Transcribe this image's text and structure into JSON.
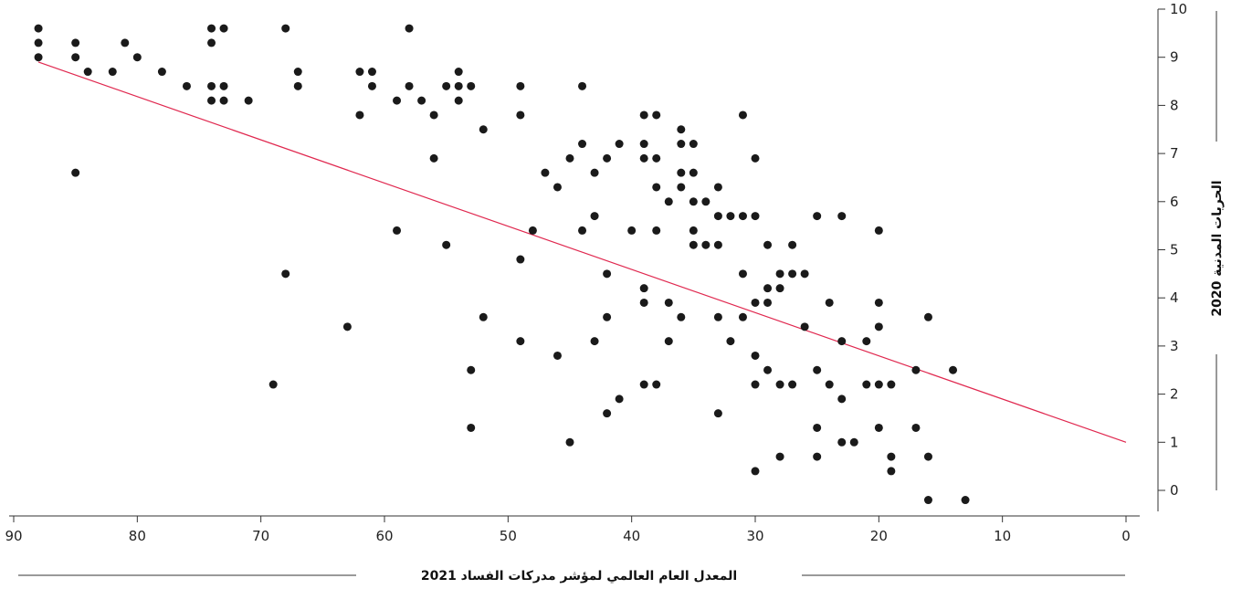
{
  "chart_data": {
    "type": "scatter",
    "title": "",
    "xlabel": "المعدل العام العالمي لمؤشر مدركات الفساد 2021",
    "ylabel": "الحريات المدنية 2020",
    "xlim": [
      90,
      0
    ],
    "ylim": [
      0,
      10
    ],
    "x_ticks": [
      90,
      80,
      70,
      60,
      50,
      40,
      30,
      20,
      10,
      0
    ],
    "y_ticks": [
      0,
      1,
      2,
      3,
      4,
      5,
      6,
      7,
      8,
      9,
      10
    ],
    "grid": false,
    "legend": "none",
    "colors": {
      "points": "#1a1a1a",
      "trendline": "#e0284f",
      "axis": "#333333"
    },
    "trendline": {
      "x": [
        88,
        0
      ],
      "y": [
        8.9,
        1.0
      ]
    },
    "points": [
      [
        88,
        9.6
      ],
      [
        88,
        9.3
      ],
      [
        88,
        9.0
      ],
      [
        85,
        9.3
      ],
      [
        85,
        9.0
      ],
      [
        84,
        8.7
      ],
      [
        82,
        8.7
      ],
      [
        81,
        9.3
      ],
      [
        80,
        9.0
      ],
      [
        78,
        8.7
      ],
      [
        76,
        8.4
      ],
      [
        74,
        9.6
      ],
      [
        74,
        9.3
      ],
      [
        74,
        8.4
      ],
      [
        74,
        8.1
      ],
      [
        73,
        9.6
      ],
      [
        73,
        8.4
      ],
      [
        73,
        8.1
      ],
      [
        71,
        8.1
      ],
      [
        68,
        9.6
      ],
      [
        67,
        8.7
      ],
      [
        67,
        8.4
      ],
      [
        62,
        8.7
      ],
      [
        62,
        7.8
      ],
      [
        61,
        8.7
      ],
      [
        61,
        8.4
      ],
      [
        59,
        8.1
      ],
      [
        58,
        9.6
      ],
      [
        58,
        8.4
      ],
      [
        57,
        8.1
      ],
      [
        56,
        7.8
      ],
      [
        55,
        8.4
      ],
      [
        54,
        8.7
      ],
      [
        54,
        8.4
      ],
      [
        54,
        8.1
      ],
      [
        53,
        8.4
      ],
      [
        52,
        7.5
      ],
      [
        49,
        8.4
      ],
      [
        49,
        7.8
      ],
      [
        44,
        8.4
      ],
      [
        31,
        7.8
      ],
      [
        85,
        6.6
      ],
      [
        68,
        4.5
      ],
      [
        69,
        2.2
      ],
      [
        63,
        3.4
      ],
      [
        59,
        5.4
      ],
      [
        56,
        6.9
      ],
      [
        55,
        5.1
      ],
      [
        53,
        2.5
      ],
      [
        53,
        1.3
      ],
      [
        52,
        3.6
      ],
      [
        49,
        4.8
      ],
      [
        49,
        3.1
      ],
      [
        48,
        5.4
      ],
      [
        47,
        6.6
      ],
      [
        46,
        6.3
      ],
      [
        46,
        2.8
      ],
      [
        45,
        6.9
      ],
      [
        45,
        1.0
      ],
      [
        44,
        7.2
      ],
      [
        44,
        5.4
      ],
      [
        43,
        6.6
      ],
      [
        43,
        5.7
      ],
      [
        43,
        3.1
      ],
      [
        42,
        6.9
      ],
      [
        42,
        4.5
      ],
      [
        42,
        3.6
      ],
      [
        42,
        1.6
      ],
      [
        41,
        7.2
      ],
      [
        41,
        1.9
      ],
      [
        40,
        5.4
      ],
      [
        39,
        7.8
      ],
      [
        39,
        7.2
      ],
      [
        39,
        6.9
      ],
      [
        39,
        4.2
      ],
      [
        39,
        3.9
      ],
      [
        39,
        2.2
      ],
      [
        38,
        7.8
      ],
      [
        38,
        6.9
      ],
      [
        38,
        6.3
      ],
      [
        38,
        5.4
      ],
      [
        38,
        2.2
      ],
      [
        37,
        6.0
      ],
      [
        37,
        3.9
      ],
      [
        37,
        3.1
      ],
      [
        36,
        7.5
      ],
      [
        36,
        7.2
      ],
      [
        36,
        6.6
      ],
      [
        36,
        6.3
      ],
      [
        36,
        3.6
      ],
      [
        35,
        7.2
      ],
      [
        35,
        6.6
      ],
      [
        35,
        6.0
      ],
      [
        35,
        5.4
      ],
      [
        35,
        5.1
      ],
      [
        34,
        6.0
      ],
      [
        34,
        5.1
      ],
      [
        33,
        6.3
      ],
      [
        33,
        5.7
      ],
      [
        33,
        5.1
      ],
      [
        33,
        3.6
      ],
      [
        33,
        1.6
      ],
      [
        32,
        5.7
      ],
      [
        32,
        3.1
      ],
      [
        31,
        5.7
      ],
      [
        31,
        4.5
      ],
      [
        31,
        3.6
      ],
      [
        30,
        6.9
      ],
      [
        30,
        5.7
      ],
      [
        30,
        3.9
      ],
      [
        30,
        2.8
      ],
      [
        30,
        2.2
      ],
      [
        30,
        0.4
      ],
      [
        29,
        5.1
      ],
      [
        29,
        4.2
      ],
      [
        29,
        3.9
      ],
      [
        29,
        2.5
      ],
      [
        28,
        4.5
      ],
      [
        28,
        4.2
      ],
      [
        28,
        2.2
      ],
      [
        28,
        0.7
      ],
      [
        27,
        5.1
      ],
      [
        27,
        4.5
      ],
      [
        27,
        2.2
      ],
      [
        26,
        4.5
      ],
      [
        26,
        3.4
      ],
      [
        25,
        5.7
      ],
      [
        25,
        2.5
      ],
      [
        25,
        1.3
      ],
      [
        25,
        0.7
      ],
      [
        24,
        3.9
      ],
      [
        24,
        2.2
      ],
      [
        23,
        5.7
      ],
      [
        23,
        3.1
      ],
      [
        23,
        1.9
      ],
      [
        23,
        1.0
      ],
      [
        22,
        1.0
      ],
      [
        21,
        3.1
      ],
      [
        21,
        2.2
      ],
      [
        20,
        5.4
      ],
      [
        20,
        3.9
      ],
      [
        20,
        3.4
      ],
      [
        20,
        2.2
      ],
      [
        20,
        1.3
      ],
      [
        19,
        2.2
      ],
      [
        19,
        0.7
      ],
      [
        19,
        0.4
      ],
      [
        17,
        2.5
      ],
      [
        17,
        1.3
      ],
      [
        16,
        3.6
      ],
      [
        16,
        0.7
      ],
      [
        16,
        -0.2
      ],
      [
        14,
        2.5
      ],
      [
        13,
        -0.2
      ]
    ]
  }
}
